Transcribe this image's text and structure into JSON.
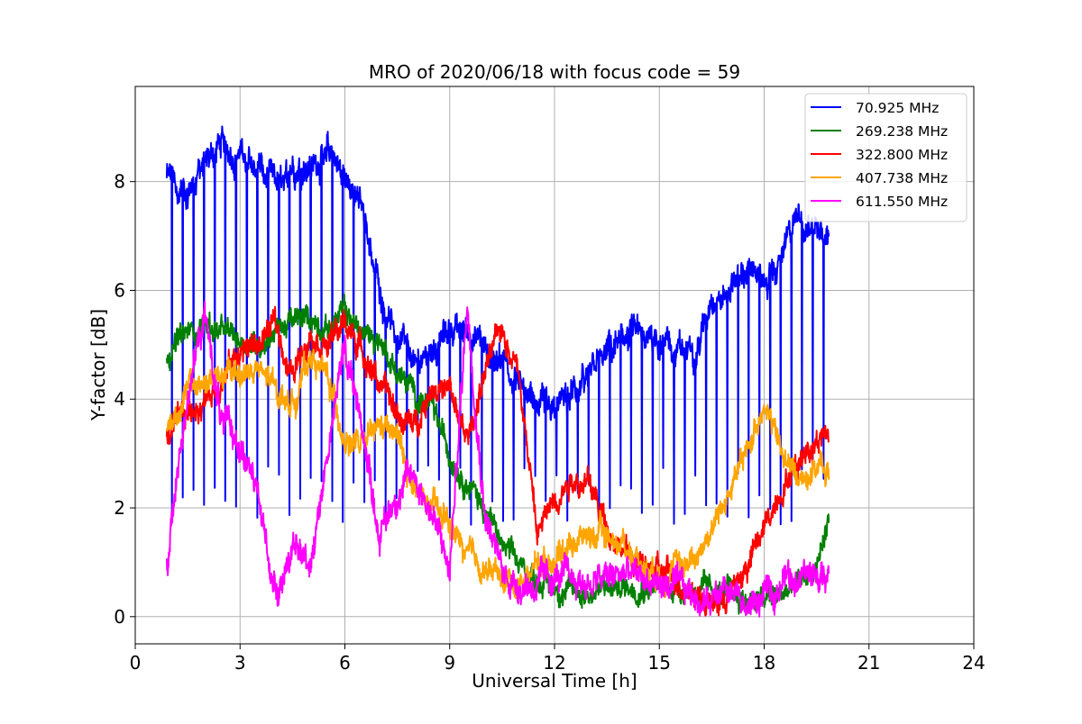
{
  "chart_data": {
    "type": "line",
    "title": "MRO of 2020/06/18 with focus code = 59",
    "xlabel": "Universal Time [h]",
    "ylabel": "Y-factor [dB]",
    "xlim": [
      0,
      24
    ],
    "ylim": [
      -0.5,
      9.75
    ],
    "xticks": [
      0,
      3,
      6,
      9,
      12,
      15,
      18,
      21,
      24
    ],
    "yticks": [
      0,
      2,
      4,
      6,
      8
    ],
    "grid": true,
    "legend_position": "top-right",
    "x_start": 0.9,
    "x_end": 19.85,
    "series": [
      {
        "name": "70.925 MHz",
        "color": "#0000ff",
        "x": [
          0.9,
          1.5,
          2.0,
          2.5,
          3.0,
          3.5,
          4.0,
          4.5,
          5.0,
          5.5,
          6.0,
          6.5,
          7.0,
          7.5,
          8.0,
          8.5,
          9.0,
          9.5,
          10.0,
          10.5,
          11.0,
          11.5,
          12.0,
          12.5,
          13.0,
          13.5,
          14.0,
          14.5,
          15.0,
          15.5,
          16.0,
          16.5,
          17.0,
          17.5,
          18.0,
          18.5,
          19.0,
          19.5,
          19.85
        ],
        "values": [
          8.1,
          7.8,
          8.4,
          8.7,
          8.5,
          8.2,
          7.9,
          8.3,
          8.3,
          8.6,
          8.0,
          7.5,
          6.0,
          5.1,
          4.6,
          4.9,
          5.3,
          5.3,
          4.9,
          4.6,
          4.2,
          4.0,
          3.8,
          4.1,
          4.4,
          4.8,
          5.2,
          5.1,
          5.1,
          4.9,
          4.8,
          5.8,
          5.9,
          6.4,
          6.2,
          6.6,
          7.3,
          7.1,
          6.9
        ],
        "dip_to": 2.2,
        "dip_count": 62
      },
      {
        "name": "269.238 MHz",
        "color": "#008000",
        "x": [
          0.9,
          1.5,
          2.0,
          2.5,
          3.0,
          3.5,
          4.0,
          4.5,
          5.0,
          5.5,
          6.0,
          6.5,
          7.0,
          7.5,
          8.0,
          8.5,
          9.0,
          9.5,
          10.0,
          10.5,
          11.0,
          11.5,
          12.0,
          12.5,
          13.0,
          13.5,
          14.0,
          14.5,
          15.0,
          15.5,
          16.0,
          16.5,
          17.0,
          17.5,
          18.0,
          18.5,
          19.0,
          19.5,
          19.85
        ],
        "values": [
          4.9,
          5.2,
          5.4,
          5.2,
          5.1,
          5.0,
          5.3,
          5.4,
          5.5,
          5.3,
          5.6,
          5.2,
          5.1,
          4.5,
          4.1,
          3.8,
          3.0,
          2.5,
          2.0,
          1.3,
          0.9,
          0.7,
          0.55,
          0.45,
          0.45,
          0.5,
          0.55,
          0.6,
          0.6,
          0.55,
          0.5,
          0.45,
          0.4,
          0.3,
          0.3,
          0.4,
          0.6,
          0.9,
          1.8
        ]
      },
      {
        "name": "322.800 MHz",
        "color": "#ff0000",
        "x": [
          0.9,
          1.5,
          2.0,
          2.5,
          3.0,
          3.5,
          4.0,
          4.5,
          5.0,
          5.5,
          6.0,
          6.5,
          7.0,
          7.5,
          8.0,
          8.5,
          9.0,
          9.5,
          10.0,
          10.5,
          11.0,
          11.5,
          12.0,
          12.5,
          13.0,
          13.5,
          14.0,
          14.5,
          15.0,
          15.5,
          16.0,
          16.5,
          17.0,
          17.5,
          18.0,
          18.5,
          19.0,
          19.5,
          19.85
        ],
        "values": [
          3.3,
          3.7,
          4.0,
          4.4,
          4.9,
          5.0,
          5.4,
          4.4,
          5.3,
          5.0,
          5.4,
          4.9,
          4.3,
          3.7,
          3.5,
          4.3,
          4.1,
          3.2,
          4.5,
          5.3,
          4.5,
          1.5,
          2.2,
          2.6,
          2.4,
          1.7,
          1.2,
          0.9,
          0.8,
          0.7,
          0.5,
          0.2,
          0.4,
          0.9,
          1.6,
          2.4,
          2.9,
          3.3,
          3.4
        ]
      },
      {
        "name": "407.738 MHz",
        "color": "#ffa500",
        "x": [
          0.9,
          1.5,
          2.0,
          2.5,
          3.0,
          3.5,
          4.0,
          4.5,
          5.0,
          5.5,
          6.0,
          6.5,
          7.0,
          7.5,
          8.0,
          8.5,
          9.0,
          9.5,
          10.0,
          10.5,
          11.0,
          11.5,
          12.0,
          12.5,
          13.0,
          13.5,
          14.0,
          14.5,
          15.0,
          15.5,
          16.0,
          16.5,
          17.0,
          17.5,
          18.0,
          18.5,
          19.0,
          19.5,
          19.85
        ],
        "values": [
          3.4,
          4.2,
          4.3,
          4.4,
          4.5,
          4.5,
          4.2,
          3.9,
          4.8,
          4.4,
          3.3,
          3.1,
          3.5,
          3.3,
          2.3,
          2.0,
          1.7,
          1.1,
          0.9,
          0.7,
          0.6,
          1.0,
          1.1,
          1.4,
          1.5,
          1.5,
          1.3,
          1.0,
          0.8,
          0.9,
          1.1,
          1.6,
          2.3,
          3.0,
          4.0,
          3.0,
          2.5,
          2.8,
          2.6
        ]
      },
      {
        "name": "611.550 MHz",
        "color": "#ff00ff",
        "x": [
          0.9,
          1.5,
          2.0,
          2.5,
          3.0,
          3.5,
          4.0,
          4.5,
          5.0,
          5.5,
          6.0,
          6.5,
          7.0,
          7.5,
          8.0,
          8.5,
          9.0,
          9.5,
          10.0,
          10.5,
          11.0,
          11.5,
          12.0,
          12.5,
          13.0,
          13.5,
          14.0,
          14.5,
          15.0,
          15.5,
          16.0,
          16.5,
          17.0,
          17.5,
          18.0,
          18.5,
          19.0,
          19.5,
          19.85
        ],
        "values": [
          0.9,
          4.2,
          5.5,
          3.5,
          3.2,
          2.2,
          0.5,
          1.2,
          1.0,
          3.0,
          5.0,
          3.5,
          1.5,
          2.3,
          2.6,
          1.9,
          0.8,
          5.8,
          2.0,
          0.8,
          0.6,
          0.6,
          0.7,
          0.7,
          0.6,
          0.7,
          0.8,
          0.7,
          0.6,
          0.5,
          0.4,
          0.3,
          0.3,
          0.2,
          0.3,
          0.7,
          0.8,
          0.7,
          0.7
        ]
      }
    ]
  }
}
